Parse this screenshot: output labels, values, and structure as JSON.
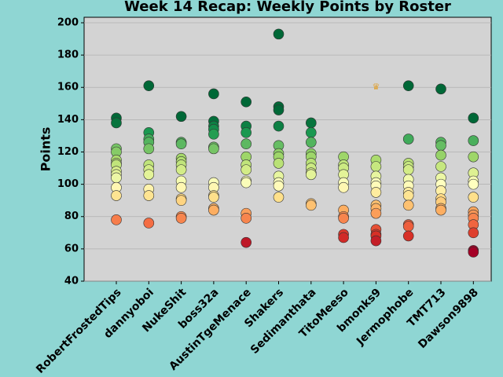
{
  "chart_data": {
    "type": "strip",
    "title": "Week 14 Recap: Weekly Points by Roster",
    "y_label": "Points",
    "categories": [
      "RobertFrostedTips",
      "dannyoboi",
      "NukeShit",
      "boss32a",
      "AustinTgeMenace",
      "Shakers",
      "Sedimanthata",
      "TitoMeeso",
      "bmonks9",
      "Jermophobe",
      "TMT713",
      "Dawson9898"
    ],
    "values": [
      [
        141,
        138,
        122,
        120,
        115,
        113,
        112,
        108,
        106,
        104,
        98,
        93,
        78
      ],
      [
        161,
        132,
        128,
        126,
        122,
        112,
        109,
        106,
        97,
        93,
        76
      ],
      [
        142,
        126,
        125,
        116,
        114,
        112,
        109,
        102,
        98,
        91,
        90,
        80,
        79
      ],
      [
        156,
        139,
        136,
        134,
        131,
        123,
        122,
        101,
        98,
        93,
        92,
        85,
        84
      ],
      [
        151,
        136,
        132,
        125,
        117,
        112,
        109,
        102,
        101,
        82,
        79,
        64
      ],
      [
        193,
        148,
        146,
        136,
        124,
        119,
        117,
        113,
        105,
        101,
        99,
        92
      ],
      [
        138,
        132,
        126,
        119,
        117,
        113,
        110,
        107,
        106,
        88,
        87
      ],
      [
        117,
        112,
        110,
        106,
        101,
        98,
        84,
        80,
        79,
        69,
        67
      ],
      [
        115,
        111,
        105,
        101,
        99,
        95,
        87,
        85,
        82,
        72,
        69,
        68,
        65
      ],
      [
        161,
        128,
        113,
        111,
        109,
        103,
        99,
        95,
        93,
        87,
        75,
        74,
        68
      ],
      [
        159,
        126,
        124,
        118,
        111,
        104,
        100,
        96,
        91,
        89,
        85,
        84
      ],
      [
        141,
        127,
        117,
        107,
        102,
        100,
        92,
        83,
        81,
        79,
        75,
        70,
        59,
        58
      ]
    ],
    "colormap": [
      "#a50026",
      "#d73027",
      "#f46d43",
      "#fdae61",
      "#fee08b",
      "#ffffbf",
      "#d9ef8b",
      "#a6d96a",
      "#66bd63",
      "#1a9850",
      "#006837"
    ],
    "color_range": [
      60,
      140
    ],
    "annotations": [
      {
        "text": "♛",
        "category": 8,
        "y": 160,
        "color": "#e0a030"
      }
    ],
    "ylim": [
      40,
      203.4
    ],
    "yticks": [
      40,
      60,
      80,
      100,
      120,
      140,
      160,
      180,
      200
    ],
    "grid": true
  }
}
